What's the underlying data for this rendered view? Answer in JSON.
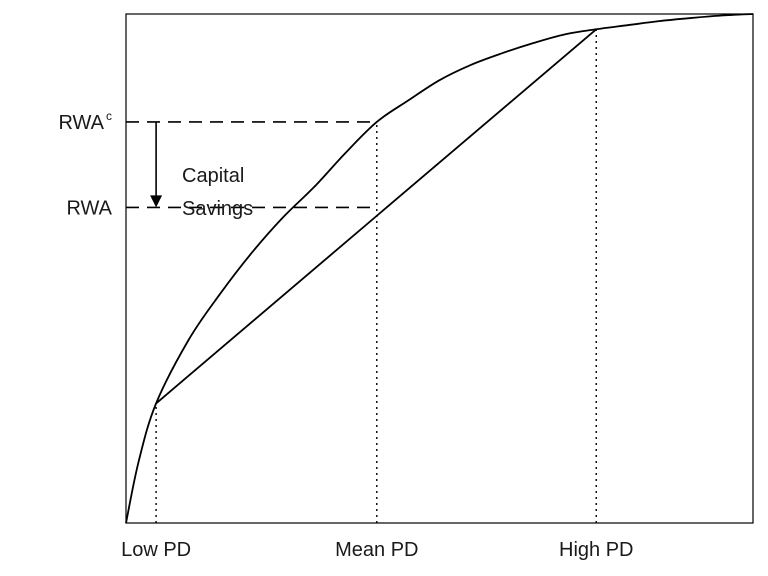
{
  "chart_data": {
    "type": "line",
    "title": "",
    "xlabel": "",
    "ylabel": "",
    "xlim": [
      0,
      1
    ],
    "ylim": [
      0,
      1
    ],
    "grid": false,
    "x_ticks": [
      {
        "label": "Low PD",
        "x": 0.048
      },
      {
        "label": "Mean PD",
        "x": 0.4
      },
      {
        "label": "High PD",
        "x": 0.75
      }
    ],
    "y_ticks": [
      {
        "label": "RWA",
        "superscript": "c",
        "y": 0.788
      },
      {
        "label": "RWA",
        "superscript": "",
        "y": 0.62
      }
    ],
    "curve": {
      "name": "",
      "x": [
        0,
        0.02,
        0.048,
        0.1,
        0.15,
        0.2,
        0.25,
        0.3,
        0.35,
        0.4,
        0.45,
        0.5,
        0.55,
        0.6,
        0.65,
        0.7,
        0.75,
        0.8,
        0.85,
        0.9,
        0.95,
        1.0
      ],
      "y": [
        0,
        0.12,
        0.235,
        0.36,
        0.45,
        0.53,
        0.6,
        0.66,
        0.727,
        0.788,
        0.83,
        0.87,
        0.9,
        0.923,
        0.943,
        0.96,
        0.97,
        0.978,
        0.986,
        0.992,
        0.997,
        1.0
      ]
    },
    "chord": {
      "x": [
        0.048,
        0.75
      ],
      "y": [
        0.235,
        0.97
      ]
    },
    "annotation": {
      "lines": [
        "Capital",
        "Savings"
      ],
      "arrow_from_y": 0.788,
      "arrow_to_y": 0.62
    }
  }
}
